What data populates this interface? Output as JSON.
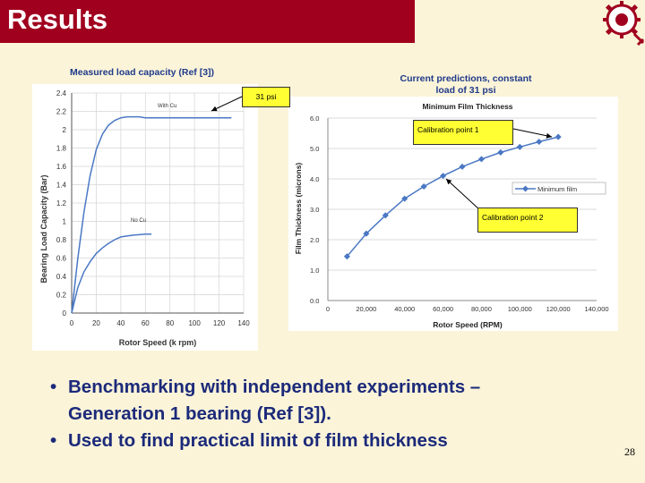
{
  "slide": {
    "title": "Results",
    "page_number": "28"
  },
  "left_figure": {
    "caption": "Measured load capacity (Ref [3])"
  },
  "right_figure": {
    "caption_line1": "Current predictions, constant",
    "caption_line2": "load of 31 psi"
  },
  "callouts": {
    "psi": "31 psi",
    "cal1": "Calibration point 1",
    "cal2": "Calibration point 2"
  },
  "bullets": [
    {
      "line1": "Benchmarking with independent experiments –",
      "line2": "Generation 1 bearing (Ref [3])."
    },
    {
      "line1": "Used to find practical limit of film thickness"
    }
  ],
  "colors": {
    "title_bar": "#a0001e",
    "caption": "#1f3a8a",
    "callout": "#ffff33",
    "series": "#4a78c4"
  },
  "chart_data": [
    {
      "type": "line",
      "xlabel": "Rotor Speed (k rpm)",
      "ylabel": "Bearing Load Capacity (Bar)",
      "xlim": [
        0,
        140
      ],
      "ylim": [
        0,
        2.4
      ],
      "x_ticks": [
        0,
        20,
        40,
        60,
        80,
        100,
        120,
        140
      ],
      "y_ticks": [
        0,
        0.2,
        0.4,
        0.6,
        0.8,
        1,
        1.2,
        1.4,
        1.6,
        1.8,
        2,
        2.2,
        2.4
      ],
      "grid": true,
      "annotations": [
        "With Cu",
        "No Cu"
      ],
      "series": [
        {
          "x": [
            0,
            5,
            10,
            15,
            20,
            25,
            30,
            35,
            40,
            45,
            50,
            55,
            60,
            70,
            80,
            90,
            100,
            110,
            120,
            130
          ],
          "y": [
            0,
            0.6,
            1.1,
            1.5,
            1.78,
            1.95,
            2.05,
            2.1,
            2.13,
            2.14,
            2.14,
            2.14,
            2.13,
            2.13,
            2.13,
            2.13,
            2.13,
            2.13,
            2.13,
            2.13
          ]
        },
        {
          "x": [
            0,
            5,
            10,
            15,
            20,
            25,
            30,
            35,
            40,
            45,
            50,
            55,
            60,
            65
          ],
          "y": [
            0,
            0.28,
            0.45,
            0.56,
            0.65,
            0.71,
            0.76,
            0.8,
            0.83,
            0.84,
            0.85,
            0.855,
            0.86,
            0.86
          ]
        }
      ]
    },
    {
      "type": "line",
      "title": "Minimum Film Thickness",
      "xlabel": "Rotor Speed (RPM)",
      "ylabel": "Film Thickness (microns)",
      "xlim": [
        0,
        140000
      ],
      "ylim": [
        0,
        6
      ],
      "x_ticks": [
        "0",
        "20,000",
        "40,000",
        "60,000",
        "80,000",
        "100,000",
        "120,000",
        "140,000"
      ],
      "y_ticks": [
        "0.0",
        "1.0",
        "2.0",
        "3.0",
        "4.0",
        "5.0",
        "6.0"
      ],
      "legend": "right",
      "series": [
        {
          "name": "Minimum film",
          "x": [
            10000,
            20000,
            30000,
            40000,
            50000,
            60000,
            70000,
            80000,
            90000,
            100000,
            110000,
            120000
          ],
          "y": [
            1.45,
            2.2,
            2.8,
            3.35,
            3.75,
            4.1,
            4.4,
            4.65,
            4.87,
            5.05,
            5.22,
            5.38
          ]
        }
      ]
    }
  ]
}
